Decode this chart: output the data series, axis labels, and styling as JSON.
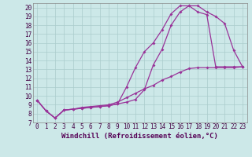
{
  "xlabel": "Windchill (Refroidissement éolien,°C)",
  "background_color": "#cce8e8",
  "grid_color": "#aacccc",
  "line_color": "#993399",
  "xlim": [
    -0.5,
    23.5
  ],
  "ylim": [
    7,
    20.5
  ],
  "xticks": [
    0,
    1,
    2,
    3,
    4,
    5,
    6,
    7,
    8,
    9,
    10,
    11,
    12,
    13,
    14,
    15,
    16,
    17,
    18,
    19,
    20,
    21,
    22,
    23
  ],
  "yticks": [
    7,
    8,
    9,
    10,
    11,
    12,
    13,
    14,
    15,
    16,
    17,
    18,
    19,
    20
  ],
  "line1_x": [
    0,
    1,
    2,
    3,
    4,
    5,
    6,
    7,
    8,
    9,
    10,
    11,
    12,
    13,
    14,
    15,
    16,
    17,
    18,
    19,
    20,
    21,
    22,
    23
  ],
  "line1_y": [
    9.5,
    8.3,
    7.5,
    8.4,
    8.5,
    8.6,
    8.7,
    8.8,
    8.9,
    9.1,
    9.3,
    9.6,
    10.7,
    13.5,
    15.3,
    18.0,
    19.5,
    20.2,
    20.2,
    19.5,
    19.0,
    18.2,
    15.2,
    13.3
  ],
  "line2_x": [
    0,
    1,
    2,
    3,
    4,
    5,
    6,
    7,
    8,
    9,
    10,
    11,
    12,
    13,
    14,
    15,
    16,
    17,
    18,
    19,
    20,
    21,
    22,
    23
  ],
  "line2_y": [
    9.5,
    8.3,
    7.5,
    8.4,
    8.5,
    8.6,
    8.7,
    8.8,
    8.9,
    9.1,
    11.0,
    13.2,
    15.0,
    16.0,
    17.5,
    19.3,
    20.2,
    20.2,
    19.5,
    19.2,
    13.3,
    13.3,
    13.3,
    13.3
  ],
  "line3_x": [
    0,
    1,
    2,
    3,
    4,
    5,
    6,
    7,
    8,
    9,
    10,
    11,
    12,
    13,
    14,
    15,
    16,
    17,
    18,
    19,
    20,
    21,
    22,
    23
  ],
  "line3_y": [
    9.5,
    8.3,
    7.5,
    8.4,
    8.5,
    8.7,
    8.8,
    8.9,
    9.0,
    9.3,
    9.8,
    10.3,
    10.8,
    11.2,
    11.8,
    12.2,
    12.7,
    13.1,
    13.2,
    13.2,
    13.2,
    13.2,
    13.2,
    13.3
  ],
  "tick_fontsize": 5.5,
  "label_fontsize": 6.5,
  "marker": "D",
  "marker_size": 2.0,
  "line_width": 0.9
}
